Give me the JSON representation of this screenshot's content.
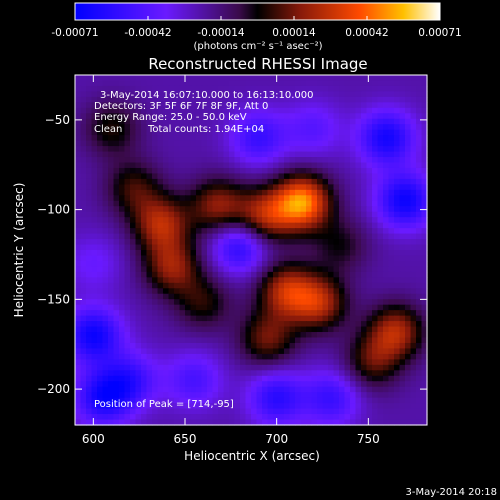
{
  "chart_data": {
    "type": "heatmap",
    "title": "Reconstructed RHESSI Image",
    "xlabel": "Heliocentric X (arcsec)",
    "ylabel": "Heliocentric Y (arcsec)",
    "xlim": [
      590,
      782
    ],
    "ylim": [
      -220,
      -25
    ],
    "x_ticks": [
      600,
      650,
      700,
      750
    ],
    "y_ticks": [
      -50,
      -100,
      -150,
      -200
    ],
    "colorbar": {
      "ticks": [
        "-0.00071",
        "-0.00042",
        "-0.00014",
        "0.00014",
        "0.00042",
        "0.00071"
      ],
      "range": [
        -0.00071,
        0.00071
      ],
      "unit_label": "(photons cm⁻² s⁻¹ asec⁻²)"
    },
    "annotations": {
      "time_range": "3-May-2014 16:07:10.000 to 16:13:10.000",
      "detectors": "Detectors: 3F 5F 6F 7F 8F 9F, Att 0",
      "energy": "Energy Range: 25.0 - 50.0 keV",
      "clean": "Clean",
      "total_counts": "Total counts: 1.94E+04",
      "peak": "Position of Peak = [714,-95]"
    },
    "sources": [
      {
        "x": 714,
        "y": -96,
        "amplitude": 0.00071
      },
      {
        "x": 693,
        "y": -104,
        "amplitude": 0.00045
      },
      {
        "x": 668,
        "y": -98,
        "amplitude": 0.0004
      },
      {
        "x": 637,
        "y": -108,
        "amplitude": 0.00045
      },
      {
        "x": 643,
        "y": -132,
        "amplitude": 0.0004
      },
      {
        "x": 622,
        "y": -88,
        "amplitude": 0.00028
      },
      {
        "x": 705,
        "y": -145,
        "amplitude": 0.00045
      },
      {
        "x": 723,
        "y": -152,
        "amplitude": 0.00045
      },
      {
        "x": 660,
        "y": -152,
        "amplitude": 0.00025
      },
      {
        "x": 695,
        "y": -172,
        "amplitude": 0.00035
      },
      {
        "x": 765,
        "y": -168,
        "amplitude": 0.00045
      },
      {
        "x": 752,
        "y": -185,
        "amplitude": 0.0003
      },
      {
        "x": 735,
        "y": -120,
        "amplitude": 0.0002
      },
      {
        "x": 610,
        "y": -55,
        "amplitude": 0.00025
      },
      {
        "x": 760,
        "y": -60,
        "amplitude": -0.00042
      },
      {
        "x": 770,
        "y": -95,
        "amplitude": -0.00045
      },
      {
        "x": 600,
        "y": -170,
        "amplitude": -0.00045
      },
      {
        "x": 605,
        "y": -205,
        "amplitude": -0.0004
      },
      {
        "x": 620,
        "y": -195,
        "amplitude": -0.0003
      },
      {
        "x": 680,
        "y": -120,
        "amplitude": -0.00038
      },
      {
        "x": 690,
        "y": -60,
        "amplitude": -0.0003
      },
      {
        "x": 700,
        "y": -205,
        "amplitude": -0.00035
      },
      {
        "x": 730,
        "y": -205,
        "amplitude": -0.0003
      },
      {
        "x": 655,
        "y": -195,
        "amplitude": -0.00025
      },
      {
        "x": 720,
        "y": -55,
        "amplitude": -0.0002
      },
      {
        "x": 600,
        "y": -130,
        "amplitude": -0.00015
      }
    ]
  },
  "footer": {
    "timestamp": "3-May-2014 20:18"
  }
}
